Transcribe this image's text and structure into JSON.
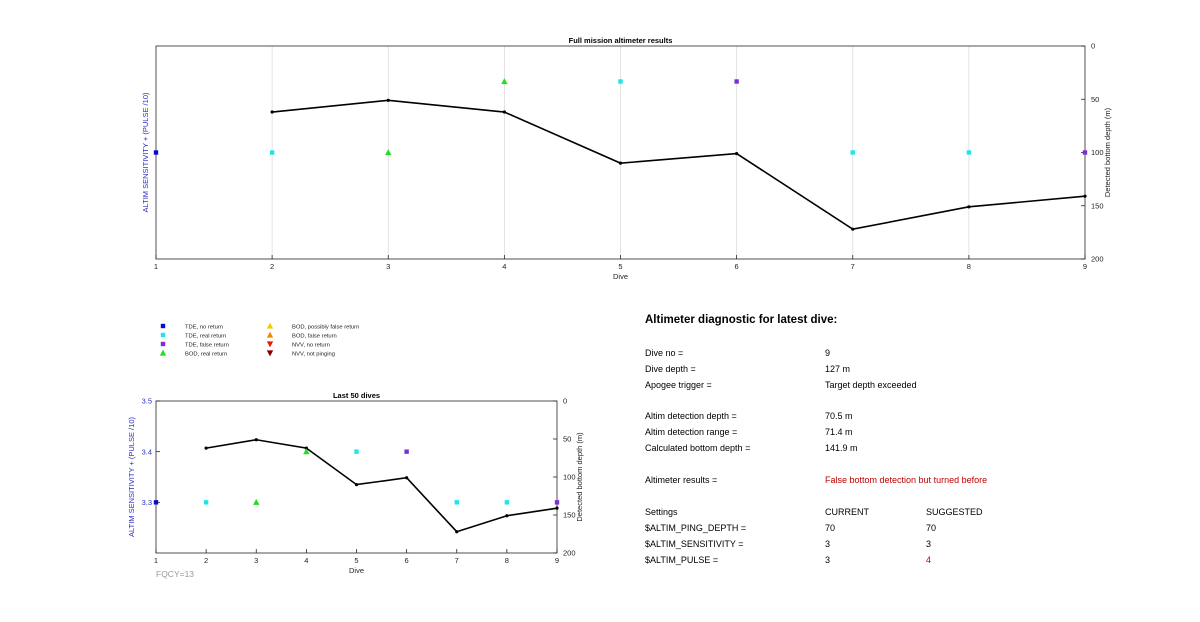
{
  "charts": [
    {
      "type": "line",
      "title": "Full mission altimeter results",
      "xlabel": "Dive",
      "ylabel_left": "ALTIM SENSITIVITY + (PULSE /10)",
      "ylabel_right": "Detected bottom depth (m)",
      "x_ticks": [
        1,
        2,
        3,
        4,
        5,
        6,
        7,
        8,
        9
      ],
      "left_ticks": [],
      "right_ticks": [
        0,
        50,
        100,
        150,
        200
      ],
      "xlim": [
        1,
        9
      ],
      "ylim_left": [
        3.0,
        3.6
      ],
      "ylim_right": [
        0,
        200
      ],
      "grid": "vertical",
      "depth_series": {
        "x": [
          2,
          3,
          4,
          5,
          6,
          7,
          8,
          9
        ],
        "y": [
          62,
          51,
          62,
          110,
          101,
          172,
          151,
          141
        ]
      },
      "markers": [
        {
          "x": 1,
          "y": 3.3,
          "type": "tde_no"
        },
        {
          "x": 2,
          "y": 3.3,
          "type": "tde_real"
        },
        {
          "x": 3,
          "y": 3.3,
          "type": "bod_real"
        },
        {
          "x": 4,
          "y": 3.5,
          "type": "bod_real"
        },
        {
          "x": 5,
          "y": 3.5,
          "type": "tde_real"
        },
        {
          "x": 6,
          "y": 3.5,
          "type": "tde_false"
        },
        {
          "x": 7,
          "y": 3.3,
          "type": "tde_real"
        },
        {
          "x": 8,
          "y": 3.3,
          "type": "tde_real"
        },
        {
          "x": 9,
          "y": 3.3,
          "type": "tde_false"
        }
      ]
    },
    {
      "type": "line",
      "title": "Last 50 dives",
      "xlabel": "Dive",
      "ylabel_left": "ALTIM SENSITIVITY + (PULSE /10)",
      "ylabel_right": "Detected bottom depth (m)",
      "x_ticks": [
        1,
        2,
        3,
        4,
        5,
        6,
        7,
        8,
        9
      ],
      "left_ticks": [
        "3.3",
        "3.4",
        "3.5"
      ],
      "right_ticks": [
        0,
        50,
        100,
        150,
        200
      ],
      "xlim": [
        1,
        9
      ],
      "ylim_left": [
        3.2,
        3.5
      ],
      "ylim_right": [
        0,
        200
      ],
      "grid": "none",
      "depth_series": {
        "x": [
          2,
          3,
          4,
          5,
          6,
          7,
          8,
          9
        ],
        "y": [
          62,
          51,
          62,
          110,
          101,
          172,
          151,
          141
        ]
      },
      "markers": [
        {
          "x": 1,
          "y": 3.3,
          "type": "tde_no"
        },
        {
          "x": 2,
          "y": 3.3,
          "type": "tde_real"
        },
        {
          "x": 3,
          "y": 3.3,
          "type": "bod_real"
        },
        {
          "x": 4,
          "y": 3.4,
          "type": "bod_real"
        },
        {
          "x": 5,
          "y": 3.4,
          "type": "tde_real"
        },
        {
          "x": 6,
          "y": 3.4,
          "type": "tde_false"
        },
        {
          "x": 7,
          "y": 3.3,
          "type": "tde_real"
        },
        {
          "x": 8,
          "y": 3.3,
          "type": "tde_real"
        },
        {
          "x": 9,
          "y": 3.3,
          "type": "tde_false"
        }
      ]
    }
  ],
  "chart_data": [
    {
      "type": "line",
      "title": "Full mission altimeter results",
      "xlabel": "Dive",
      "ylabel": "ALTIM SENSITIVITY + (PULSE /10)",
      "y2label": "Detected bottom depth (m)",
      "x": [
        2,
        3,
        4,
        5,
        6,
        7,
        8,
        9
      ],
      "y2": [
        62,
        51,
        62,
        110,
        101,
        172,
        151,
        141
      ],
      "y2lim": [
        0,
        200
      ],
      "xlim": [
        1,
        9
      ]
    },
    {
      "type": "line",
      "title": "Last 50 dives",
      "xlabel": "Dive",
      "ylabel": "ALTIM SENSITIVITY + (PULSE /10)",
      "y2label": "Detected bottom depth (m)",
      "x": [
        2,
        3,
        4,
        5,
        6,
        7,
        8,
        9
      ],
      "y2": [
        62,
        51,
        62,
        110,
        101,
        172,
        151,
        141
      ],
      "y2lim": [
        0,
        200
      ],
      "ylim": [
        3.2,
        3.5
      ],
      "xlim": [
        1,
        9
      ]
    }
  ],
  "legend": [
    {
      "label": "TDE, no return",
      "shape": "square",
      "color": "#0a0ad2"
    },
    {
      "label": "TDE, real return",
      "shape": "square",
      "color": "#1ee6e6"
    },
    {
      "label": "TDE, false return",
      "shape": "square",
      "color": "#7a2fd8"
    },
    {
      "label": "BOD, real return",
      "shape": "triangle-up",
      "color": "#22dd22"
    },
    {
      "label": "BOD, possibly false return",
      "shape": "triangle-up",
      "color": "#f5c800"
    },
    {
      "label": "BOD, false return",
      "shape": "triangle-up",
      "color": "#f08a00"
    },
    {
      "label": "NVV, no return",
      "shape": "triangle-down",
      "color": "#e02000"
    },
    {
      "label": "NVV, not pinging",
      "shape": "triangle-down",
      "color": "#800000"
    }
  ],
  "fqcy_label": "FQCY=13",
  "diagnostic": {
    "title": "Altimeter diagnostic for latest dive:",
    "dive_no_label": "Dive no =",
    "dive_no": "9",
    "dive_depth_label": "Dive depth =",
    "dive_depth": "127 m",
    "apogee_label": "Apogee trigger =",
    "apogee": "Target depth exceeded",
    "detection_depth_label": "Altim detection depth =",
    "detection_depth": "70.5 m",
    "detection_range_label": "Altim detection range =",
    "detection_range": "71.4 m",
    "bottom_depth_label": "Calculated bottom depth =",
    "bottom_depth": "141.9 m",
    "results_label": "Altimeter results =",
    "results": "False bottom detection but turned before",
    "settings_label": "Settings",
    "current_label": "CURRENT",
    "suggested_label": "SUGGESTED",
    "settings": [
      {
        "name": "$ALTIM_PING_DEPTH =",
        "current": "70",
        "suggested": "70",
        "changed": false
      },
      {
        "name": "$ALTIM_SENSITIVITY =",
        "current": "3",
        "suggested": "3",
        "changed": false
      },
      {
        "name": "$ALTIM_PULSE =",
        "current": "3",
        "suggested": "4",
        "changed": true
      }
    ]
  },
  "colors": {
    "axis": "#262626",
    "grid": "#dcdcdc",
    "left_axis_label": "#2b2bc8",
    "line": "#000000",
    "fqcy": "#999999",
    "warning": "#c00000",
    "tde_no": "#0a0ad2",
    "tde_real": "#1ee6e6",
    "tde_false": "#7a2fd8",
    "bod_real": "#22dd22"
  }
}
